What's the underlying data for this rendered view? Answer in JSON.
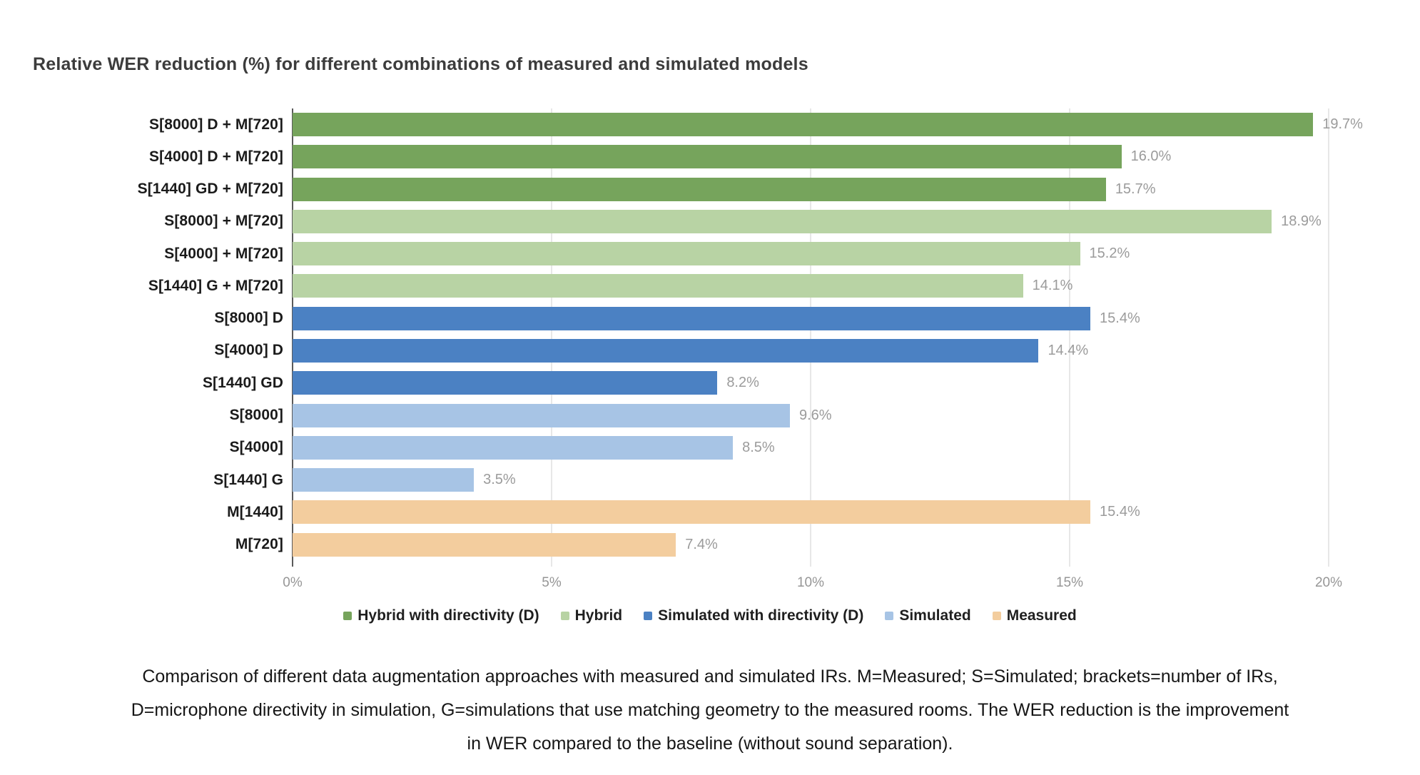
{
  "chart_data": {
    "type": "bar",
    "orientation": "horizontal",
    "title": "Relative WER reduction (%) for different combinations of measured and simulated models",
    "categories": [
      "S[8000] D + M[720]",
      "S[4000] D + M[720]",
      "S[1440] GD + M[720]",
      "S[8000] + M[720]",
      "S[4000] + M[720]",
      "S[1440] G + M[720]",
      "S[8000] D",
      "S[4000] D",
      "S[1440] GD",
      "S[8000]",
      "S[4000]",
      "S[1440] G",
      "M[1440]",
      "M[720]"
    ],
    "values": [
      19.7,
      16.0,
      15.7,
      18.9,
      15.2,
      14.1,
      15.4,
      14.4,
      8.2,
      9.6,
      8.5,
      3.5,
      15.4,
      7.4
    ],
    "value_labels": [
      "19.7%",
      "16.0%",
      "15.7%",
      "18.9%",
      "15.2%",
      "14.1%",
      "15.4%",
      "14.4%",
      "8.2%",
      "9.6%",
      "8.5%",
      "3.5%",
      "15.4%",
      "7.4%"
    ],
    "bar_groups": [
      "hybrid_d",
      "hybrid_d",
      "hybrid_d",
      "hybrid",
      "hybrid",
      "hybrid",
      "simulated_d",
      "simulated_d",
      "simulated_d",
      "simulated",
      "simulated",
      "simulated",
      "measured",
      "measured"
    ],
    "colors": {
      "hybrid_d": "#76a45c",
      "hybrid": "#b8d3a4",
      "simulated_d": "#4b81c3",
      "simulated": "#a7c4e5",
      "measured": "#f3cd9e"
    },
    "xlim": [
      0,
      20
    ],
    "x_ticks": [
      {
        "label": "0%",
        "value": 0
      },
      {
        "label": "5%",
        "value": 5
      },
      {
        "label": "10%",
        "value": 10
      },
      {
        "label": "15%",
        "value": 15
      },
      {
        "label": "20%",
        "value": 20
      }
    ],
    "grid": true,
    "legend_position": "bottom",
    "legend": [
      {
        "label": "Hybrid with directivity (D)",
        "color_key": "hybrid_d"
      },
      {
        "label": "Hybrid",
        "color_key": "hybrid"
      },
      {
        "label": "Simulated with directivity (D)",
        "color_key": "simulated_d"
      },
      {
        "label": "Simulated",
        "color_key": "simulated"
      },
      {
        "label": "Measured",
        "color_key": "measured"
      }
    ]
  },
  "caption": {
    "line1": "Comparison of different data augmentation approaches with measured and simulated IRs. M=Measured; S=Simulated; brackets=number of IRs,",
    "line2": "D=microphone directivity in simulation, G=simulations that use matching geometry to the measured rooms. The WER reduction is the improvement",
    "line3": "in WER compared to the baseline (without sound separation)."
  }
}
